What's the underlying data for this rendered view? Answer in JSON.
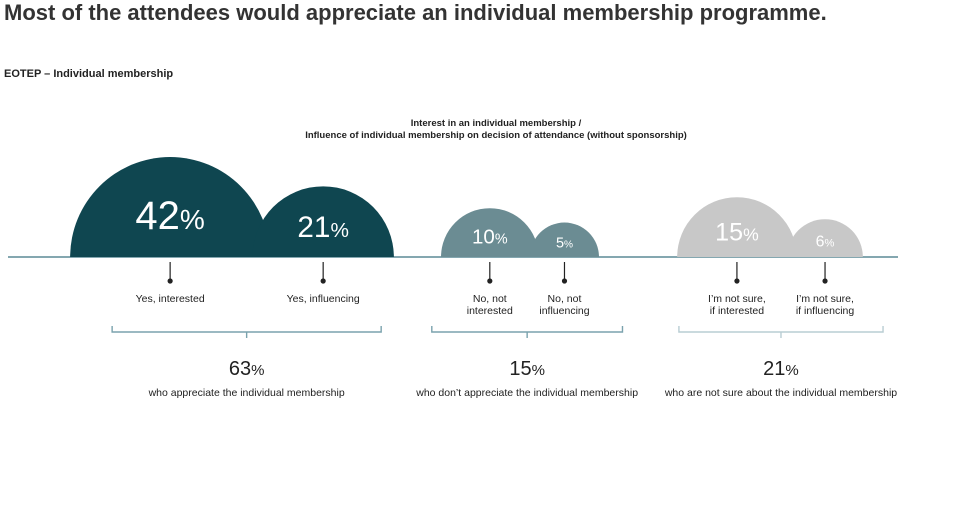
{
  "headline": "Most of the attendees would appreciate an individual membership programme.",
  "subheading": "EOTEP – Individual membership",
  "chart_data": {
    "type": "semicircle-bubble",
    "title_lines": [
      "Interest in an individual membership /",
      "Influence of individual membership on decision of attendance (without sponsorship)"
    ],
    "unit": "%",
    "groups": [
      {
        "color": "#0f4650",
        "total": 63,
        "total_label": "who appreciate the individual membership",
        "items": [
          {
            "label": [
              "Yes, interested"
            ],
            "value": 42
          },
          {
            "label": [
              "Yes, influencing"
            ],
            "value": 21
          }
        ]
      },
      {
        "color": "#6b8c93",
        "total": 15,
        "total_label": "who don’t appreciate the individual membership",
        "items": [
          {
            "label": [
              "No, not",
              "interested"
            ],
            "value": 10
          },
          {
            "label": [
              "No, not",
              "influencing"
            ],
            "value": 5
          }
        ]
      },
      {
        "color": "#c8c8c8",
        "total": 21,
        "total_label": "who are not sure about the individual membership",
        "items": [
          {
            "label": [
              "I’m not sure,",
              "if interested"
            ],
            "value": 15
          },
          {
            "label": [
              "I’m not sure,",
              "if influencing"
            ],
            "value": 6
          }
        ]
      }
    ]
  }
}
